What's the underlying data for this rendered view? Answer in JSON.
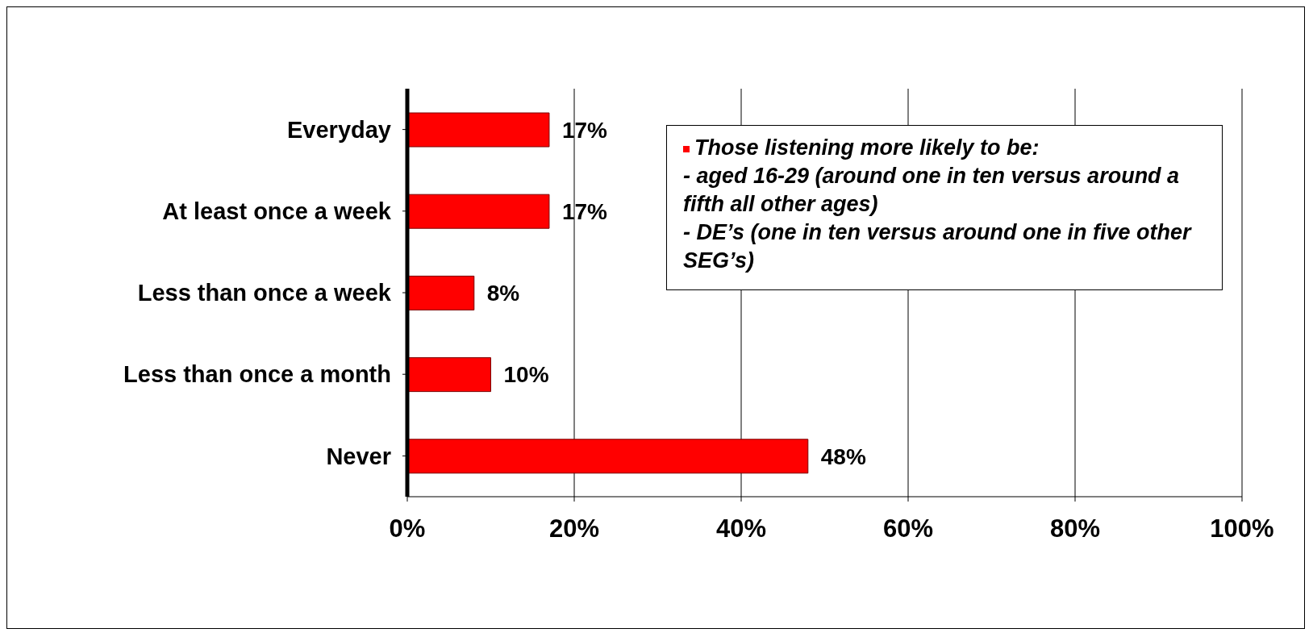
{
  "chart_data": {
    "type": "bar",
    "orientation": "horizontal",
    "categories": [
      "Everyday",
      "At least once a week",
      "Less than once a week",
      "Less than once a month",
      "Never"
    ],
    "values": [
      17,
      17,
      8,
      10,
      48
    ],
    "value_labels": [
      "17%",
      "17%",
      "8%",
      "10%",
      "48%"
    ],
    "color": "#ff0000",
    "xlim": [
      0,
      100
    ],
    "xticks": [
      {
        "value": 0,
        "label": "0%"
      },
      {
        "value": 20,
        "label": "20%"
      },
      {
        "value": 40,
        "label": "40%"
      },
      {
        "value": 60,
        "label": "60%"
      },
      {
        "value": 80,
        "label": "80%"
      },
      {
        "value": 100,
        "label": "100%"
      }
    ],
    "grid": "x",
    "annotations": [
      "Those listening more likely to be:",
      "- aged 16-29 (around one in ten versus around a fifth all other ages)",
      "- DE’s (one in ten versus around one in five other SEG’s)"
    ]
  }
}
